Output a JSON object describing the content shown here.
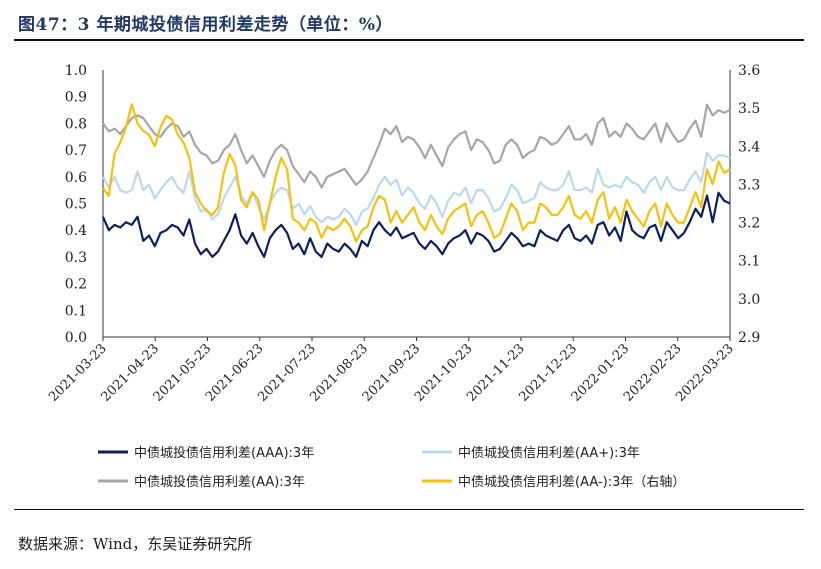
{
  "title": "图47：3 年期城投债信用利差走势（单位：%）",
  "source": "数据来源：Wind，东吴证券研究所",
  "chart_data": {
    "type": "line",
    "ylim_left": [
      0.0,
      1.0
    ],
    "ylim_right": [
      2.9,
      3.6
    ],
    "left_ticks": [
      "0.0",
      "0.1",
      "0.2",
      "0.3",
      "0.4",
      "0.5",
      "0.6",
      "0.7",
      "0.8",
      "0.9",
      "1.0"
    ],
    "right_ticks": [
      "2.9",
      "3.0",
      "3.1",
      "3.2",
      "3.3",
      "3.4",
      "3.5",
      "3.6"
    ],
    "x_tick_labels": [
      "2021-03-23",
      "2021-04-23",
      "2021-05-23",
      "2021-06-23",
      "2021-07-23",
      "2021-08-23",
      "2021-09-23",
      "2021-10-23",
      "2021-11-23",
      "2021-12-23",
      "2022-01-23",
      "2022-02-23",
      "2022-03-23"
    ],
    "legend_position": "bottom",
    "series": [
      {
        "name": "中债城投债信用利差(AAA):3年",
        "axis": "left",
        "color": "#0d1f5c",
        "values": [
          0.45,
          0.4,
          0.42,
          0.41,
          0.43,
          0.42,
          0.45,
          0.36,
          0.38,
          0.34,
          0.39,
          0.4,
          0.42,
          0.41,
          0.38,
          0.44,
          0.35,
          0.31,
          0.33,
          0.3,
          0.32,
          0.36,
          0.4,
          0.46,
          0.38,
          0.35,
          0.39,
          0.34,
          0.3,
          0.37,
          0.4,
          0.42,
          0.39,
          0.33,
          0.35,
          0.31,
          0.37,
          0.32,
          0.3,
          0.35,
          0.33,
          0.32,
          0.35,
          0.33,
          0.3,
          0.36,
          0.34,
          0.4,
          0.43,
          0.4,
          0.38,
          0.41,
          0.37,
          0.38,
          0.39,
          0.35,
          0.33,
          0.36,
          0.34,
          0.31,
          0.35,
          0.37,
          0.38,
          0.4,
          0.35,
          0.39,
          0.38,
          0.36,
          0.32,
          0.33,
          0.36,
          0.39,
          0.37,
          0.34,
          0.35,
          0.34,
          0.4,
          0.38,
          0.37,
          0.36,
          0.4,
          0.42,
          0.37,
          0.36,
          0.38,
          0.35,
          0.42,
          0.43,
          0.38,
          0.41,
          0.36,
          0.47,
          0.4,
          0.38,
          0.37,
          0.41,
          0.42,
          0.36,
          0.43,
          0.4,
          0.37,
          0.39,
          0.43,
          0.48,
          0.45,
          0.53,
          0.43,
          0.54,
          0.51,
          0.5
        ]
      },
      {
        "name": "中债城投债信用利差(AA+):3年",
        "axis": "left",
        "color": "#bdd7ee",
        "values": [
          0.6,
          0.56,
          0.6,
          0.55,
          0.54,
          0.55,
          0.62,
          0.55,
          0.57,
          0.52,
          0.55,
          0.58,
          0.6,
          0.56,
          0.54,
          0.62,
          0.52,
          0.47,
          0.48,
          0.44,
          0.46,
          0.52,
          0.56,
          0.6,
          0.53,
          0.5,
          0.54,
          0.49,
          0.44,
          0.5,
          0.54,
          0.56,
          0.55,
          0.48,
          0.5,
          0.46,
          0.49,
          0.45,
          0.43,
          0.45,
          0.44,
          0.45,
          0.48,
          0.46,
          0.42,
          0.47,
          0.48,
          0.52,
          0.57,
          0.6,
          0.57,
          0.59,
          0.53,
          0.56,
          0.54,
          0.5,
          0.48,
          0.53,
          0.5,
          0.45,
          0.51,
          0.54,
          0.53,
          0.56,
          0.5,
          0.55,
          0.55,
          0.52,
          0.47,
          0.48,
          0.52,
          0.57,
          0.55,
          0.5,
          0.51,
          0.52,
          0.58,
          0.56,
          0.55,
          0.55,
          0.57,
          0.62,
          0.55,
          0.55,
          0.56,
          0.54,
          0.63,
          0.57,
          0.56,
          0.57,
          0.56,
          0.6,
          0.58,
          0.57,
          0.54,
          0.58,
          0.6,
          0.55,
          0.6,
          0.56,
          0.55,
          0.55,
          0.59,
          0.62,
          0.58,
          0.69,
          0.66,
          0.68,
          0.68,
          0.67
        ]
      },
      {
        "name": "中债城投债信用利差(AA):3年",
        "axis": "left",
        "color": "#a6a6a6",
        "values": [
          0.8,
          0.77,
          0.78,
          0.76,
          0.79,
          0.82,
          0.83,
          0.82,
          0.79,
          0.76,
          0.75,
          0.78,
          0.8,
          0.79,
          0.75,
          0.77,
          0.72,
          0.69,
          0.68,
          0.65,
          0.66,
          0.7,
          0.72,
          0.76,
          0.7,
          0.65,
          0.68,
          0.64,
          0.6,
          0.66,
          0.7,
          0.72,
          0.7,
          0.64,
          0.61,
          0.58,
          0.62,
          0.6,
          0.56,
          0.6,
          0.61,
          0.62,
          0.63,
          0.6,
          0.57,
          0.59,
          0.62,
          0.67,
          0.72,
          0.78,
          0.76,
          0.79,
          0.73,
          0.75,
          0.74,
          0.71,
          0.67,
          0.72,
          0.68,
          0.64,
          0.71,
          0.74,
          0.76,
          0.77,
          0.7,
          0.74,
          0.73,
          0.7,
          0.65,
          0.66,
          0.72,
          0.74,
          0.72,
          0.67,
          0.69,
          0.7,
          0.75,
          0.74,
          0.72,
          0.73,
          0.76,
          0.79,
          0.74,
          0.74,
          0.76,
          0.72,
          0.8,
          0.82,
          0.75,
          0.77,
          0.75,
          0.8,
          0.78,
          0.75,
          0.74,
          0.77,
          0.8,
          0.73,
          0.8,
          0.76,
          0.73,
          0.74,
          0.78,
          0.81,
          0.75,
          0.87,
          0.83,
          0.85,
          0.84,
          0.85
        ]
      },
      {
        "name": "中债城投债信用利差(AA-):3年（右轴）",
        "axis": "right",
        "color": "#f4c20d",
        "values": [
          3.29,
          3.27,
          3.38,
          3.41,
          3.45,
          3.51,
          3.46,
          3.44,
          3.43,
          3.4,
          3.45,
          3.48,
          3.47,
          3.43,
          3.41,
          3.37,
          3.28,
          3.25,
          3.23,
          3.22,
          3.24,
          3.33,
          3.38,
          3.35,
          3.26,
          3.24,
          3.28,
          3.26,
          3.18,
          3.25,
          3.32,
          3.37,
          3.34,
          3.21,
          3.2,
          3.18,
          3.21,
          3.2,
          3.16,
          3.19,
          3.18,
          3.19,
          3.21,
          3.19,
          3.15,
          3.18,
          3.19,
          3.24,
          3.27,
          3.26,
          3.2,
          3.23,
          3.2,
          3.22,
          3.24,
          3.2,
          3.18,
          3.22,
          3.19,
          3.17,
          3.21,
          3.23,
          3.24,
          3.25,
          3.19,
          3.22,
          3.23,
          3.2,
          3.16,
          3.17,
          3.21,
          3.25,
          3.23,
          3.18,
          3.2,
          3.2,
          3.25,
          3.24,
          3.22,
          3.22,
          3.24,
          3.27,
          3.22,
          3.21,
          3.23,
          3.2,
          3.26,
          3.28,
          3.21,
          3.24,
          3.2,
          3.26,
          3.23,
          3.21,
          3.19,
          3.23,
          3.25,
          3.19,
          3.25,
          3.22,
          3.2,
          3.2,
          3.24,
          3.28,
          3.24,
          3.34,
          3.3,
          3.36,
          3.33,
          3.34
        ]
      }
    ]
  }
}
